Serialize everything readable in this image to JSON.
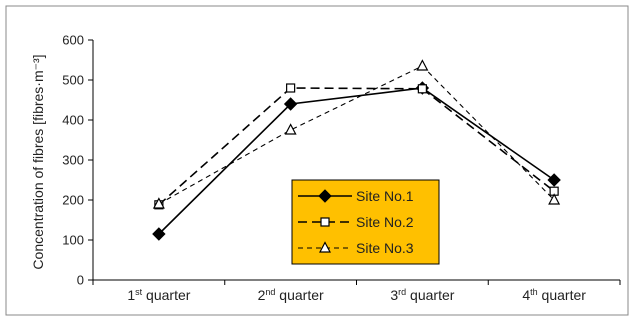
{
  "chart_data": {
    "type": "line",
    "title": "",
    "ylabel": "Concentration of fibres [fibres·m⁻³]",
    "xlabel": "",
    "ylim": [
      0,
      600
    ],
    "yticks": [
      0,
      100,
      200,
      300,
      400,
      500,
      600
    ],
    "categories": [
      {
        "base": "1",
        "sup": "st",
        "rest": " quarter"
      },
      {
        "base": "2",
        "sup": "nd",
        "rest": " quarter"
      },
      {
        "base": "3",
        "sup": "rd",
        "rest": " quarter"
      },
      {
        "base": "4",
        "sup": "th",
        "rest": " quarter"
      }
    ],
    "series": [
      {
        "name": "Site No.1",
        "values": [
          115,
          440,
          480,
          250
        ],
        "marker": "diamond",
        "dash": "solid"
      },
      {
        "name": "Site No.2",
        "values": [
          188,
          480,
          478,
          222
        ],
        "marker": "square-open",
        "dash": "long-dash"
      },
      {
        "name": "Site No.3",
        "values": [
          190,
          375,
          535,
          200
        ],
        "marker": "triangle-open",
        "dash": "dash"
      }
    ],
    "legend": {
      "position": "center",
      "background": "#ffc000"
    },
    "grid": false,
    "border": true
  }
}
